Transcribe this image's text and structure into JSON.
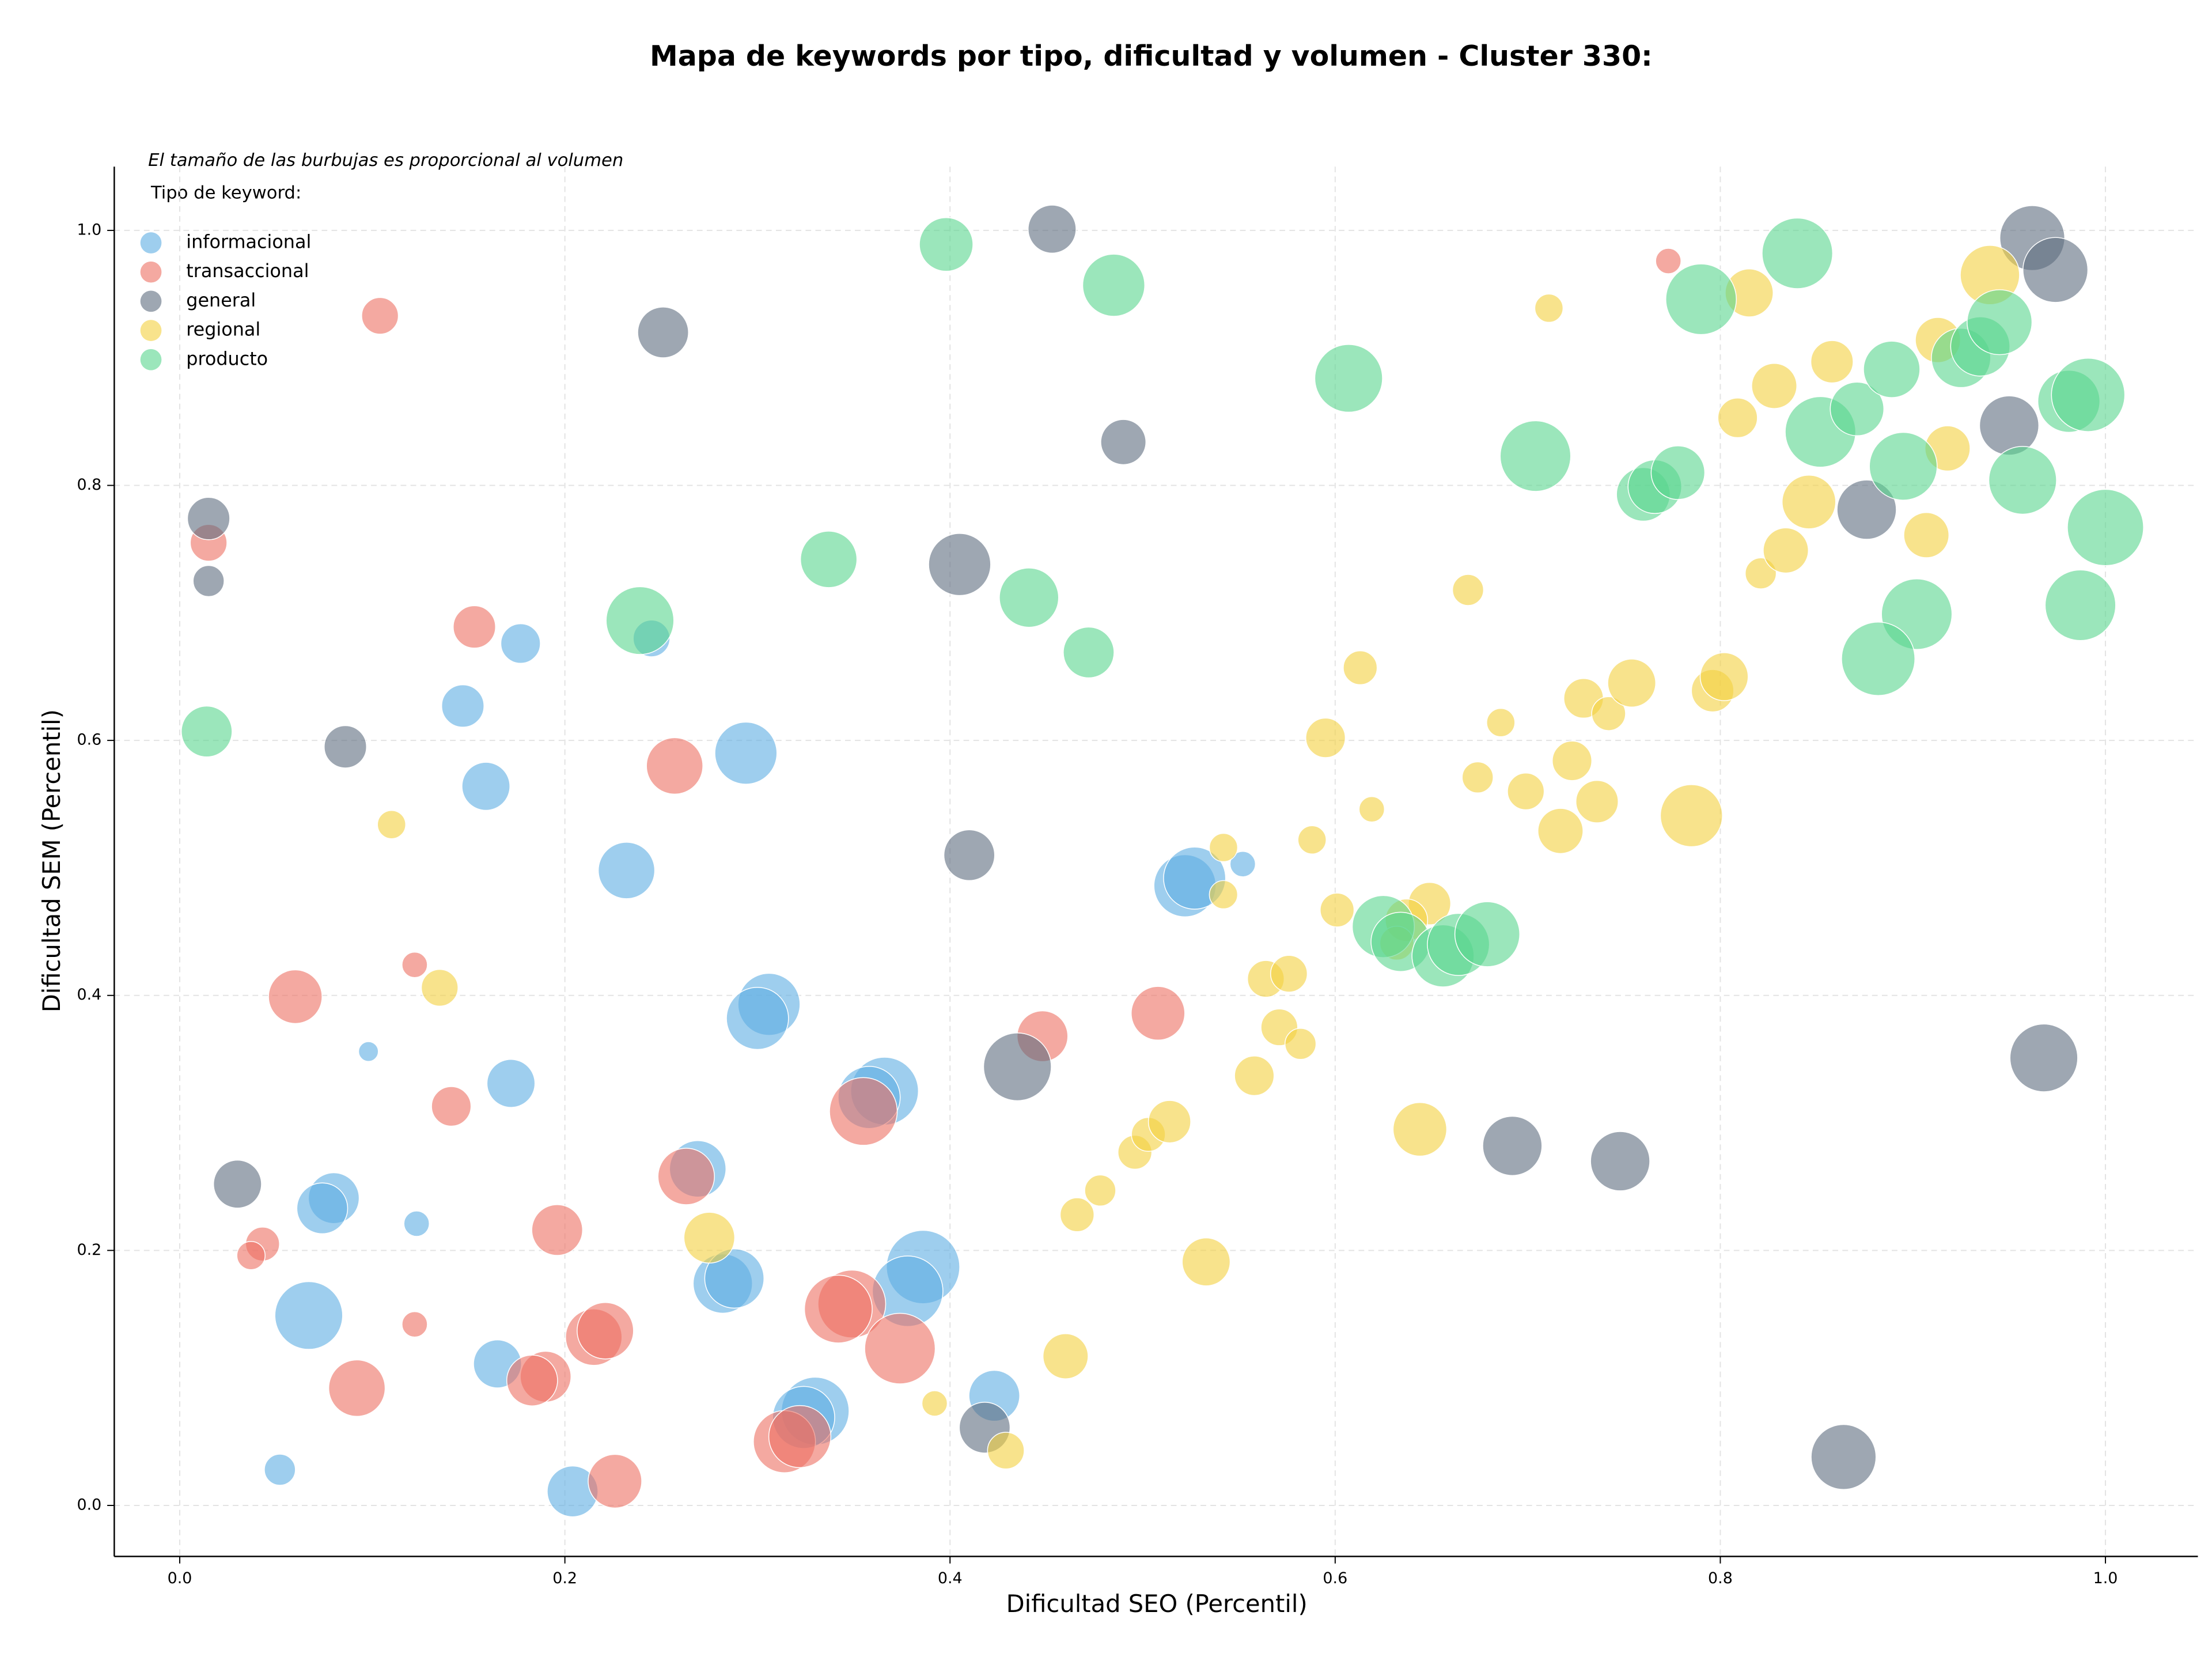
{
  "chart_data": {
    "type": "scatter",
    "title": "Mapa de keywords por tipo, dificultad y volumen - Cluster 330:",
    "note": "El tamaño de las burbujas es proporcional al volumen",
    "legend_title": "Tipo de keyword:",
    "xlabel": "Dificultad SEO (Percentil)",
    "ylabel": "Dificultad SEM (Percentil)",
    "xlim": [
      -0.034,
      1.048
    ],
    "ylim": [
      -0.04,
      1.05
    ],
    "xticks": [
      {
        "value": 0,
        "label": "0.0"
      },
      0.2,
      0.4,
      0.6,
      0.8,
      {
        "value": 1,
        "label": "1.0"
      }
    ],
    "yticks": [
      {
        "value": 0,
        "label": "0.0"
      },
      0.2,
      0.4,
      0.6,
      0.8,
      {
        "value": 1,
        "label": "1.0"
      }
    ],
    "grid": true,
    "legend": "upper left",
    "series": [
      {
        "name": "informacional",
        "color": "#5dade2",
        "x": [
          0.177,
          0.147,
          0.159,
          0.245,
          0.294,
          0.232,
          0.552,
          0.522,
          0.527,
          0.306,
          0.3,
          0.098,
          0.172,
          0.123,
          0.08,
          0.074,
          0.067,
          0.165,
          0.052,
          0.204,
          0.269,
          0.282,
          0.288,
          0.366,
          0.358,
          0.386,
          0.378,
          0.33,
          0.324,
          0.423
        ],
        "y": [
          0.676,
          0.627,
          0.564,
          0.68,
          0.59,
          0.498,
          0.503,
          0.486,
          0.492,
          0.393,
          0.382,
          0.356,
          0.331,
          0.221,
          0.241,
          0.233,
          0.149,
          0.111,
          0.028,
          0.011,
          0.264,
          0.174,
          0.178,
          0.325,
          0.32,
          0.187,
          0.168,
          0.074,
          0.069,
          0.086
        ],
        "sizes": [
          196,
          225,
          289,
          169,
          484,
          400,
          81,
          484,
          484,
          484,
          484,
          49,
          289,
          81,
          324,
          324,
          576,
          289,
          121,
          324,
          400,
          441,
          441,
          576,
          484,
          676,
          625,
          576,
          484,
          324
        ]
      },
      {
        "name": "transaccional",
        "color": "#ec7063",
        "x": [
          0.104,
          0.773,
          0.015,
          0.153,
          0.257,
          0.06,
          0.122,
          0.141,
          0.196,
          0.043,
          0.037,
          0.122,
          0.092,
          0.19,
          0.183,
          0.215,
          0.221,
          0.226,
          0.263,
          0.355,
          0.349,
          0.342,
          0.374,
          0.314,
          0.322,
          0.448,
          0.508
        ],
        "y": [
          0.933,
          0.976,
          0.755,
          0.689,
          0.58,
          0.399,
          0.424,
          0.313,
          0.216,
          0.205,
          0.196,
          0.142,
          0.092,
          0.101,
          0.098,
          0.132,
          0.137,
          0.019,
          0.258,
          0.309,
          0.158,
          0.154,
          0.123,
          0.05,
          0.054,
          0.368,
          0.386
        ],
        "sizes": [
          169,
          81,
          169,
          225,
          400,
          361,
          81,
          196,
          324,
          144,
          100,
          81,
          400,
          324,
          324,
          400,
          400,
          361,
          400,
          576,
          576,
          576,
          625,
          484,
          484,
          324,
          361
        ]
      },
      {
        "name": "general",
        "color": "#5d6d7e",
        "x": [
          0.015,
          0.015,
          0.086,
          0.251,
          0.453,
          0.49,
          0.405,
          0.41,
          0.435,
          0.03,
          0.418,
          0.692,
          0.748,
          0.968,
          0.864,
          0.876,
          0.95,
          0.962,
          0.974
        ],
        "y": [
          0.774,
          0.725,
          0.595,
          0.92,
          1.001,
          0.834,
          0.738,
          0.51,
          0.344,
          0.252,
          0.061,
          0.282,
          0.27,
          0.351,
          0.038,
          0.781,
          0.847,
          0.994,
          0.969
        ],
        "sizes": [
          225,
          121,
          225,
          324,
          289,
          256,
          484,
          324,
          576,
          289,
          324,
          441,
          441,
          576,
          529,
          441,
          441,
          529,
          529
        ]
      },
      {
        "name": "regional",
        "color": "#f4d03f",
        "x": [
          0.11,
          0.135,
          0.275,
          0.392,
          0.429,
          0.46,
          0.466,
          0.478,
          0.496,
          0.503,
          0.514,
          0.533,
          0.558,
          0.571,
          0.582,
          0.564,
          0.576,
          0.542,
          0.542,
          0.588,
          0.601,
          0.595,
          0.613,
          0.619,
          0.644,
          0.649,
          0.637,
          0.632,
          0.669,
          0.674,
          0.686,
          0.699,
          0.711,
          0.717,
          0.723,
          0.729,
          0.736,
          0.742,
          0.754,
          0.785,
          0.796,
          0.802,
          0.809,
          0.815,
          0.821,
          0.828,
          0.834,
          0.846,
          0.858,
          0.907,
          0.913,
          0.918,
          0.94
        ],
        "y": [
          0.534,
          0.406,
          0.21,
          0.08,
          0.043,
          0.117,
          0.228,
          0.247,
          0.277,
          0.291,
          0.301,
          0.191,
          0.337,
          0.375,
          0.362,
          0.413,
          0.417,
          0.479,
          0.516,
          0.522,
          0.467,
          0.602,
          0.657,
          0.546,
          0.295,
          0.472,
          0.459,
          0.441,
          0.718,
          0.571,
          0.614,
          0.56,
          0.939,
          0.529,
          0.584,
          0.633,
          0.552,
          0.621,
          0.645,
          0.541,
          0.639,
          0.65,
          0.853,
          0.951,
          0.731,
          0.878,
          0.749,
          0.787,
          0.897,
          0.761,
          0.914,
          0.829,
          0.965
        ],
        "sizes": [
          100,
          169,
          324,
          81,
          169,
          256,
          144,
          121,
          144,
          144,
          225,
          289,
          196,
          169,
          121,
          169,
          169,
          100,
          100,
          100,
          144,
          196,
          144,
          81,
          361,
          225,
          225,
          144,
          121,
          121,
          100,
          169,
          100,
          256,
          196,
          196,
          225,
          144,
          289,
          484,
          225,
          289,
          196,
          289,
          121,
          256,
          256,
          361,
          225,
          256,
          256,
          256,
          441
        ]
      },
      {
        "name": "producto",
        "color": "#58d68d",
        "x": [
          0.014,
          0.398,
          0.485,
          0.337,
          0.239,
          0.441,
          0.472,
          0.607,
          0.704,
          0.76,
          0.766,
          0.778,
          0.79,
          0.84,
          0.852,
          0.871,
          0.889,
          0.895,
          0.925,
          0.935,
          0.945,
          0.957,
          0.981,
          0.991,
          1.0,
          0.987,
          0.902,
          0.882,
          0.625,
          0.634,
          0.656,
          0.664,
          0.679
        ],
        "y": [
          0.607,
          0.989,
          0.957,
          0.742,
          0.694,
          0.712,
          0.669,
          0.884,
          0.823,
          0.793,
          0.799,
          0.81,
          0.946,
          0.982,
          0.842,
          0.86,
          0.891,
          0.815,
          0.9,
          0.909,
          0.928,
          0.804,
          0.866,
          0.871,
          0.767,
          0.706,
          0.699,
          0.664,
          0.454,
          0.442,
          0.431,
          0.44,
          0.448
        ],
        "sizes": [
          324,
          361,
          484,
          400,
          576,
          441,
          324,
          576,
          625,
          361,
          361,
          361,
          625,
          625,
          625,
          361,
          400,
          576,
          441,
          441,
          529,
          576,
          484,
          676,
          729,
          625,
          625,
          676,
          484,
          441,
          484,
          484,
          529
        ]
      }
    ]
  }
}
